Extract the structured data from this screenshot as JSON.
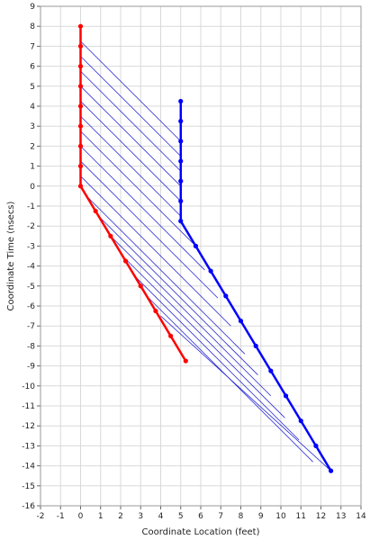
{
  "chart_data": {
    "type": "line",
    "xlabel": "Coordinate Location (feet)",
    "ylabel": "Coordinate Time (nsecs)",
    "xlim": [
      -2,
      14
    ],
    "ylim": [
      -16,
      9
    ],
    "grid": true,
    "xticks": [
      -2,
      -1,
      0,
      1,
      2,
      3,
      4,
      5,
      6,
      7,
      8,
      9,
      10,
      11,
      12,
      13,
      14
    ],
    "yticks": [
      9,
      8,
      7,
      6,
      5,
      4,
      3,
      2,
      1,
      0,
      -1,
      -2,
      -3,
      -4,
      -5,
      -6,
      -7,
      -8,
      -9,
      -10,
      -11,
      -12,
      -13,
      -14,
      -15,
      -16
    ],
    "colors": {
      "red_worldline": "#ff0000",
      "blue_worldline": "#0000ff",
      "signal_lines": "#2b2bd6",
      "grid": "#d9d9d9"
    },
    "series": [
      {
        "color": "#ff0000",
        "points": [
          [
            5.25,
            -8.75
          ],
          [
            4.5,
            -7.5
          ],
          [
            3.75,
            -6.25
          ],
          [
            3.0,
            -5.0
          ],
          [
            2.25,
            -3.75
          ],
          [
            1.5,
            -2.5
          ],
          [
            0.75,
            -1.25
          ],
          [
            0,
            0
          ],
          [
            0,
            1
          ],
          [
            0,
            2
          ],
          [
            0,
            3
          ],
          [
            0,
            4
          ],
          [
            0,
            5
          ],
          [
            0,
            6
          ],
          [
            0,
            7
          ],
          [
            0,
            8
          ]
        ]
      },
      {
        "color": "#0000ff",
        "points": [
          [
            12.5,
            -14.25
          ],
          [
            11.75,
            -13.0
          ],
          [
            11.0,
            -11.75
          ],
          [
            10.25,
            -10.5
          ],
          [
            9.5,
            -9.25
          ],
          [
            8.75,
            -8.0
          ],
          [
            8.0,
            -6.75
          ],
          [
            7.25,
            -5.5
          ],
          [
            6.5,
            -4.25
          ],
          [
            5.75,
            -3.0
          ],
          [
            5.0,
            -1.75
          ],
          [
            5.0,
            -0.75
          ],
          [
            5.0,
            0.25
          ],
          [
            5.0,
            1.25
          ],
          [
            5.0,
            2.25
          ],
          [
            5.0,
            3.25
          ],
          [
            5.0,
            4.25
          ]
        ]
      }
    ],
    "signal_lines": [
      [
        [
          0.0,
          7.25
        ],
        [
          5.0,
          2.25
        ]
      ],
      [
        [
          0.0,
          6.5
        ],
        [
          5.0,
          1.5
        ]
      ],
      [
        [
          0.0,
          5.75
        ],
        [
          5.0,
          0.75
        ]
      ],
      [
        [
          0.0,
          5.0
        ],
        [
          5.0,
          0.0
        ]
      ],
      [
        [
          0.0,
          4.25
        ],
        [
          5.0,
          -0.75
        ]
      ],
      [
        [
          0.0,
          3.5
        ],
        [
          5.0,
          -1.5
        ]
      ],
      [
        [
          0.0,
          2.75
        ],
        [
          5.6,
          -2.85
        ]
      ],
      [
        [
          0.0,
          2.0
        ],
        [
          6.2,
          -4.2
        ]
      ],
      [
        [
          0.0,
          1.25
        ],
        [
          6.85,
          -5.6
        ]
      ],
      [
        [
          0.0,
          0.5
        ],
        [
          7.5,
          -7.0
        ]
      ],
      [
        [
          0.3,
          -0.5
        ],
        [
          8.2,
          -8.4
        ]
      ],
      [
        [
          0.9,
          -1.5
        ],
        [
          8.85,
          -9.45
        ]
      ],
      [
        [
          1.5,
          -2.5
        ],
        [
          9.5,
          -10.5
        ]
      ],
      [
        [
          2.1,
          -3.5
        ],
        [
          10.2,
          -11.6
        ]
      ],
      [
        [
          2.7,
          -4.5
        ],
        [
          10.9,
          -12.7
        ]
      ],
      [
        [
          3.3,
          -5.5
        ],
        [
          11.6,
          -13.8
        ]
      ],
      [
        [
          4.0,
          -6.5
        ],
        [
          12.5,
          -14.25
        ]
      ]
    ]
  }
}
